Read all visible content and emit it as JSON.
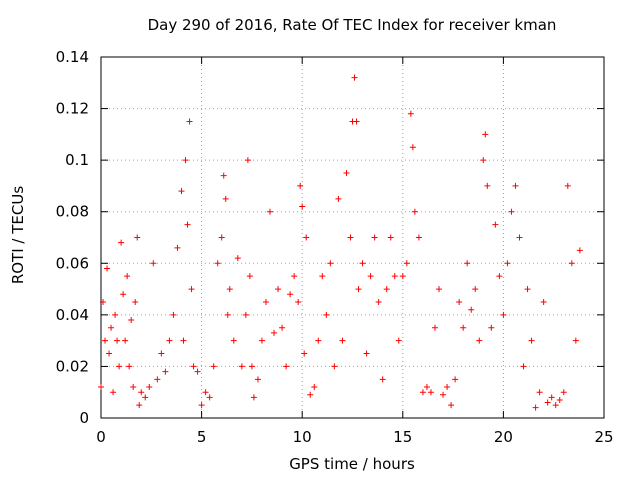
{
  "chart_data": {
    "type": "scatter",
    "title": "Day 290 of 2016, Rate Of TEC Index for receiver kman",
    "xlabel": "GPS time / hours",
    "ylabel": "ROTI / TECUs",
    "xlim": [
      0,
      25
    ],
    "ylim": [
      0,
      0.14
    ],
    "xticks": [
      "0",
      "5",
      "10",
      "15",
      "20",
      "25"
    ],
    "xtick_values": [
      0,
      5,
      10,
      15,
      20,
      25
    ],
    "yticks": [
      "0",
      "0.02",
      "0.04",
      "0.06",
      "0.08",
      "0.1",
      "0.12",
      "0.14"
    ],
    "ytick_values": [
      0,
      0.02,
      0.04,
      0.06,
      0.08,
      0.1,
      0.12,
      0.14
    ],
    "grid": true,
    "marker": "+",
    "color": "#ff0000",
    "series": [
      {
        "name": "ROTI",
        "x": [
          0.0,
          0.1,
          0.2,
          0.3,
          0.4,
          0.5,
          0.6,
          0.7,
          0.8,
          0.9,
          1.0,
          1.1,
          1.2,
          1.3,
          1.4,
          1.5,
          1.6,
          1.7,
          1.8,
          1.9,
          2.0,
          2.2,
          2.4,
          2.6,
          2.8,
          3.0,
          3.2,
          3.4,
          3.6,
          3.8,
          4.0,
          4.1,
          4.2,
          4.3,
          4.4,
          4.5,
          4.6,
          4.8,
          5.0,
          5.2,
          5.4,
          5.6,
          5.8,
          6.0,
          6.1,
          6.2,
          6.3,
          6.4,
          6.6,
          6.8,
          7.0,
          7.2,
          7.3,
          7.4,
          7.5,
          7.6,
          7.8,
          8.0,
          8.2,
          8.4,
          8.6,
          8.8,
          9.0,
          9.2,
          9.4,
          9.6,
          9.8,
          9.9,
          10.0,
          10.1,
          10.2,
          10.4,
          10.6,
          10.8,
          11.0,
          11.2,
          11.4,
          11.6,
          11.8,
          12.0,
          12.2,
          12.4,
          12.5,
          12.6,
          12.7,
          12.8,
          13.0,
          13.2,
          13.4,
          13.6,
          13.8,
          14.0,
          14.2,
          14.4,
          14.6,
          14.8,
          15.0,
          15.2,
          15.4,
          15.5,
          15.6,
          15.8,
          16.0,
          16.2,
          16.4,
          16.6,
          16.8,
          17.0,
          17.2,
          17.4,
          17.6,
          17.8,
          18.0,
          18.2,
          18.4,
          18.6,
          18.8,
          19.0,
          19.1,
          19.2,
          19.4,
          19.6,
          19.8,
          20.0,
          20.2,
          20.4,
          20.6,
          20.8,
          21.0,
          21.2,
          21.4,
          21.6,
          21.8,
          22.0,
          22.2,
          22.4,
          22.6,
          22.8,
          23.0,
          23.2,
          23.4,
          23.6,
          23.8
        ],
        "y": [
          0.012,
          0.045,
          0.03,
          0.058,
          0.025,
          0.035,
          0.01,
          0.04,
          0.03,
          0.02,
          0.068,
          0.048,
          0.03,
          0.055,
          0.02,
          0.038,
          0.012,
          0.045,
          0.07,
          0.005,
          0.01,
          0.008,
          0.012,
          0.06,
          0.015,
          0.025,
          0.018,
          0.03,
          0.04,
          0.066,
          0.088,
          0.03,
          0.1,
          0.075,
          0.115,
          0.05,
          0.02,
          0.018,
          0.005,
          0.01,
          0.008,
          0.02,
          0.06,
          0.07,
          0.094,
          0.085,
          0.04,
          0.05,
          0.03,
          0.062,
          0.02,
          0.04,
          0.1,
          0.055,
          0.02,
          0.008,
          0.015,
          0.03,
          0.045,
          0.08,
          0.033,
          0.05,
          0.035,
          0.02,
          0.048,
          0.055,
          0.045,
          0.09,
          0.082,
          0.025,
          0.07,
          0.009,
          0.012,
          0.03,
          0.055,
          0.04,
          0.06,
          0.02,
          0.085,
          0.03,
          0.095,
          0.07,
          0.115,
          0.132,
          0.115,
          0.05,
          0.06,
          0.025,
          0.055,
          0.07,
          0.045,
          0.015,
          0.05,
          0.07,
          0.055,
          0.03,
          0.055,
          0.06,
          0.118,
          0.105,
          0.08,
          0.07,
          0.01,
          0.012,
          0.01,
          0.035,
          0.05,
          0.009,
          0.012,
          0.005,
          0.015,
          0.045,
          0.035,
          0.06,
          0.042,
          0.05,
          0.03,
          0.1,
          0.11,
          0.09,
          0.035,
          0.075,
          0.055,
          0.04,
          0.06,
          0.08,
          0.09,
          0.07,
          0.02,
          0.05,
          0.03,
          0.004,
          0.01,
          0.045,
          0.006,
          0.008,
          0.005,
          0.007,
          0.01,
          0.09,
          0.06,
          0.03,
          0.065
        ]
      }
    ]
  }
}
